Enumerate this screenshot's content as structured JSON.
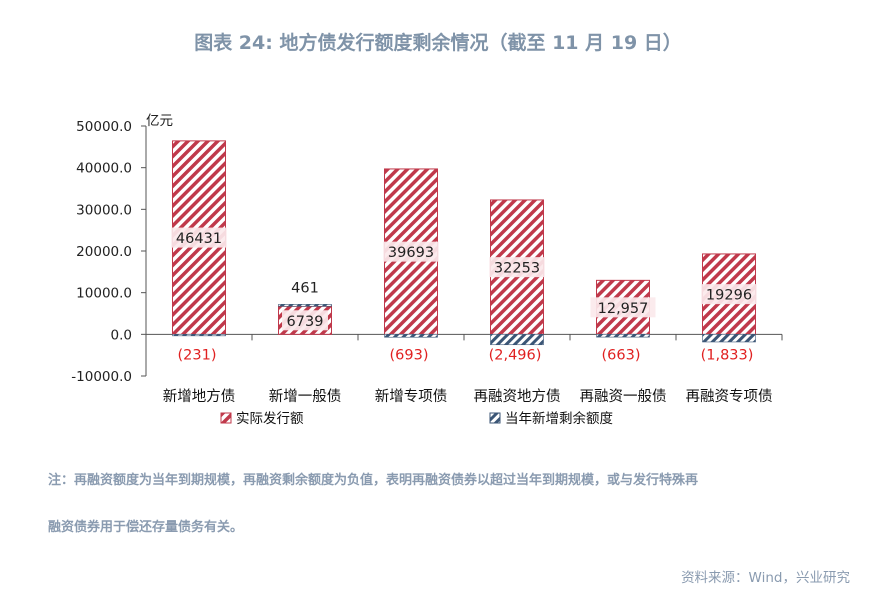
{
  "title": "图表 24: 地方债发行额度剩余情况（截至 11 月 19 日）",
  "note_line1": "注：再融资额度为当年到期规模，再融资剩余额度为负值，表明再融资债券以超过当年到期规模，或与发行特殊再",
  "note_line2": "融资债券用于偿还存量债务有关。",
  "source": "资料来源：Wind，兴业研究",
  "colors": {
    "issued": "#c0394b",
    "remaining": "#3b5676",
    "neg_label": "#e02020",
    "axis": "#999999"
  },
  "chart_data": {
    "type": "bar",
    "stacked": true,
    "y_unit": "亿元",
    "ylim": [
      -10000,
      50000
    ],
    "y_ticks": [
      "50000.0",
      "40000.0",
      "30000.0",
      "20000.0",
      "10000.0",
      "0.0",
      "-10000.0"
    ],
    "categories": [
      "新增地方债",
      "新增一般债",
      "新增专项债",
      "再融资地方债",
      "再融资一般债",
      "再融资专项债"
    ],
    "series": [
      {
        "name": "实际发行额",
        "values": [
          46431,
          6739,
          39693,
          32253,
          12957,
          19296
        ],
        "labels": [
          "46431",
          "6739",
          "39693",
          "32253",
          "12,957",
          "19296"
        ]
      },
      {
        "name": "当年新增剩余额度",
        "values": [
          -231,
          461,
          -693,
          -2496,
          -663,
          -1833
        ],
        "labels": [
          "(231)",
          "461",
          "(693)",
          "(2,496)",
          "(663)",
          "(1,833)"
        ]
      }
    ],
    "legend_position": "bottom",
    "grid": false
  }
}
